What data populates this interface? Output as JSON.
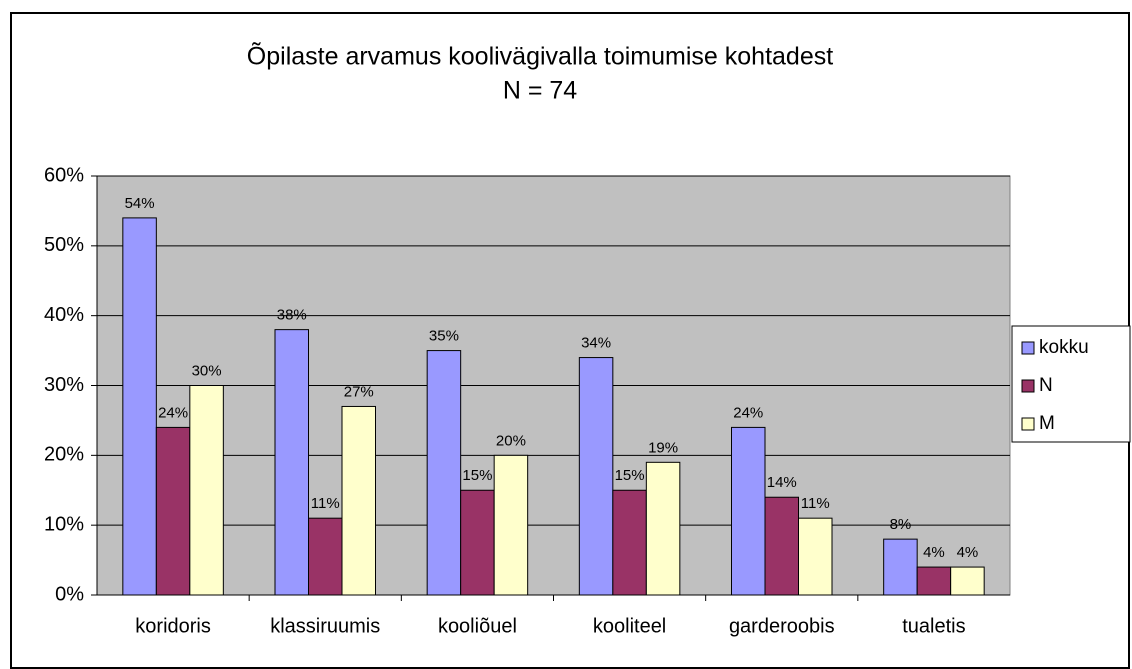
{
  "chart_data": {
    "type": "bar",
    "title": "Õpilaste arvamus koolivägivalla toimumise kohtadest",
    "subtitle": "N = 74",
    "categories": [
      "koridoris",
      "klassiruumis",
      "kooliõuel",
      "kooliteel",
      "garderoobis",
      "tualetis"
    ],
    "series": [
      {
        "name": "kokku",
        "color": "#9999ff",
        "values": [
          54,
          38,
          35,
          34,
          24,
          8
        ],
        "value_labels": [
          "54%",
          "38%",
          "35%",
          "34%",
          "24%",
          "8%"
        ]
      },
      {
        "name": "N",
        "color": "#993366",
        "values": [
          24,
          11,
          15,
          15,
          14,
          4
        ],
        "value_labels": [
          "24%",
          "11%",
          "15%",
          "15%",
          "14%",
          "4%"
        ]
      },
      {
        "name": "M",
        "color": "#ffffcc",
        "values": [
          30,
          27,
          20,
          19,
          11,
          4
        ],
        "value_labels": [
          "30%",
          "27%",
          "20%",
          "19%",
          "11%",
          "4%"
        ]
      }
    ],
    "ylim": [
      0,
      60
    ],
    "yticks": [
      {
        "value": 0,
        "label": "0%"
      },
      {
        "value": 10,
        "label": "10%"
      },
      {
        "value": 20,
        "label": "20%"
      },
      {
        "value": 30,
        "label": "30%"
      },
      {
        "value": 40,
        "label": "40%"
      },
      {
        "value": 50,
        "label": "50%"
      },
      {
        "value": 60,
        "label": "60%"
      }
    ],
    "grid": true,
    "legend": "right"
  }
}
